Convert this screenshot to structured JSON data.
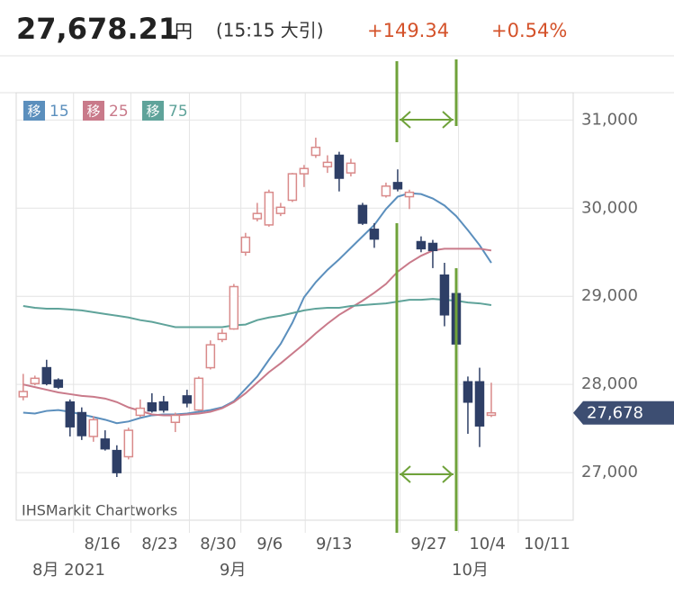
{
  "header": {
    "price": "27,678.21",
    "unit": "円",
    "time": "(15:15 大引)",
    "change": "+149.34",
    "change_pct": "+0.54%"
  },
  "chart_data": {
    "type": "candlestick",
    "ma_badge": "移",
    "source": "IHSMarkit Chartworks",
    "up_color": "#d98a8a",
    "down_color": "#2e3f66",
    "candles": {
      "open": [
        27860,
        28010,
        28190,
        28050,
        27800,
        27680,
        27410,
        27380,
        27250,
        27180,
        27650,
        27790,
        27800,
        27570,
        27870,
        27710,
        28190,
        28510,
        28630,
        29500,
        29880,
        29810,
        29940,
        30090,
        30390,
        30600,
        30470,
        30600,
        30400,
        30030,
        29760,
        30140,
        30290,
        30130,
        29620,
        29600,
        29240,
        29030,
        28030,
        28030,
        27650
      ],
      "high": [
        28120,
        28100,
        28280,
        28070,
        27830,
        27740,
        27640,
        27480,
        27310,
        27510,
        27830,
        27900,
        27870,
        27680,
        27940,
        28090,
        28500,
        28630,
        29140,
        29720,
        30060,
        30210,
        30060,
        30400,
        30490,
        30800,
        30600,
        30640,
        30560,
        30060,
        29830,
        30290,
        30440,
        30210,
        29680,
        29640,
        29380,
        29070,
        28090,
        28190,
        28020
      ],
      "low": [
        27820,
        27990,
        27990,
        27950,
        27410,
        27370,
        27350,
        27250,
        26950,
        27150,
        27630,
        27680,
        27680,
        27460,
        27740,
        27700,
        28170,
        28480,
        28620,
        29460,
        29850,
        29790,
        29910,
        30070,
        30240,
        30570,
        30400,
        30190,
        30360,
        29810,
        29550,
        30120,
        30190,
        29990,
        29500,
        29320,
        28660,
        28380,
        27440,
        27290,
        27630
      ],
      "close": [
        27920,
        28070,
        28010,
        27970,
        27520,
        27420,
        27600,
        27270,
        27000,
        27480,
        27730,
        27700,
        27710,
        27650,
        27790,
        28070,
        28450,
        28580,
        29110,
        29670,
        29940,
        30180,
        30010,
        30390,
        30450,
        30690,
        30520,
        30340,
        30510,
        29830,
        29650,
        30250,
        30220,
        30180,
        29540,
        29520,
        28790,
        28460,
        27800,
        27530,
        27678
      ]
    },
    "series": [
      {
        "name": "15",
        "color": "#5b8fbd",
        "values": [
          27680,
          27670,
          27700,
          27710,
          27690,
          27660,
          27630,
          27600,
          27560,
          27580,
          27620,
          27650,
          27660,
          27660,
          27670,
          27690,
          27710,
          27740,
          27810,
          27950,
          28090,
          28280,
          28460,
          28700,
          28990,
          29160,
          29300,
          29420,
          29550,
          29680,
          29810,
          29990,
          30130,
          30170,
          30160,
          30110,
          30030,
          29910,
          29750,
          29580,
          29380
        ]
      },
      {
        "name": "25",
        "color": "#c97a8a",
        "values": [
          28000,
          27970,
          27940,
          27910,
          27890,
          27870,
          27860,
          27840,
          27800,
          27740,
          27700,
          27660,
          27650,
          27650,
          27660,
          27670,
          27690,
          27730,
          27800,
          27900,
          28020,
          28140,
          28240,
          28350,
          28460,
          28580,
          28690,
          28790,
          28870,
          28950,
          29040,
          29140,
          29280,
          29380,
          29460,
          29520,
          29540,
          29540,
          29540,
          29540,
          29520
        ]
      },
      {
        "name": "75",
        "color": "#5fa39a",
        "values": [
          28890,
          28870,
          28860,
          28860,
          28850,
          28840,
          28820,
          28800,
          28780,
          28760,
          28730,
          28710,
          28680,
          28650,
          28650,
          28650,
          28650,
          28650,
          28670,
          28680,
          28730,
          28760,
          28780,
          28810,
          28840,
          28860,
          28870,
          28870,
          28890,
          28900,
          28910,
          28920,
          28940,
          28960,
          28960,
          28970,
          28960,
          28950,
          28930,
          28920,
          28900
        ]
      }
    ],
    "xlim": [
      -0.6,
      47
    ],
    "xticks": [
      {
        "value": 4.3,
        "label": "8/16"
      },
      {
        "value": 9.2,
        "label": "8/23"
      },
      {
        "value": 14.2,
        "label": "8/30"
      },
      {
        "value": 18.6,
        "label": "9/6"
      },
      {
        "value": 24.1,
        "label": "9/13"
      },
      {
        "value": 32.2,
        "label": "9/27"
      },
      {
        "value": 37.2,
        "label": "10/4"
      },
      {
        "value": 42.3,
        "label": "10/11"
      }
    ],
    "month_labels": [
      "8月 2021",
      "9月",
      "10月"
    ],
    "ylim": [
      26460,
      31310
    ],
    "yticks": [
      {
        "value": 27000,
        "label": "27,000"
      },
      {
        "value": 28000,
        "label": "28,000"
      },
      {
        "value": 29000,
        "label": "29,000"
      },
      {
        "value": 30000,
        "label": "30,000"
      },
      {
        "value": 31000,
        "label": "31,000"
      }
    ],
    "last_price": {
      "value": 27678,
      "label": "27,678"
    },
    "grid": true
  }
}
